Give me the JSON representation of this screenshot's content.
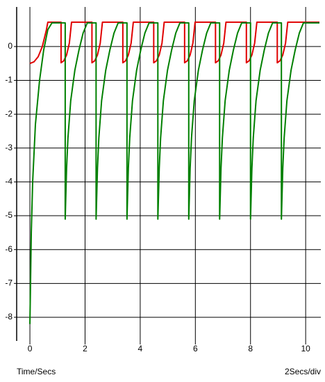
{
  "chart_data": {
    "type": "line",
    "x_label": "Time/Secs",
    "scale_label": "2Secs/div",
    "xlim": [
      -0.48,
      10.55
    ],
    "ylim": [
      -8.7,
      1.17
    ],
    "xticks": [
      0,
      2,
      4,
      6,
      8,
      10
    ],
    "yticks": [
      -8,
      -7,
      -6,
      -5,
      -4,
      -3,
      -2,
      -1,
      0
    ],
    "grid": true,
    "series": [
      {
        "color": "#e00000",
        "x": [
          0,
          0.15,
          0.3,
          0.45,
          0.6,
          0.65,
          1.13,
          1.13,
          1.23,
          1.33,
          1.43,
          1.51,
          2.25,
          2.25,
          2.35,
          2.45,
          2.55,
          2.63,
          3.37,
          3.37,
          3.47,
          3.57,
          3.67,
          3.75,
          4.49,
          4.49,
          4.59,
          4.69,
          4.79,
          4.87,
          5.61,
          5.61,
          5.71,
          5.81,
          5.91,
          5.99,
          6.73,
          6.73,
          6.83,
          6.93,
          7.03,
          7.11,
          7.85,
          7.85,
          7.95,
          8.05,
          8.15,
          8.23,
          8.97,
          8.97,
          9.07,
          9.17,
          9.27,
          9.35,
          10.5
        ],
        "values": [
          -0.5,
          -0.45,
          -0.3,
          0,
          0.5,
          0.72,
          0.72,
          -0.48,
          -0.42,
          -0.25,
          0.1,
          0.72,
          0.72,
          -0.48,
          -0.42,
          -0.25,
          0.1,
          0.72,
          0.72,
          -0.48,
          -0.42,
          -0.25,
          0.1,
          0.72,
          0.72,
          -0.48,
          -0.42,
          -0.25,
          0.1,
          0.72,
          0.72,
          -0.48,
          -0.42,
          -0.25,
          0.1,
          0.72,
          0.72,
          -0.48,
          -0.42,
          -0.25,
          0.1,
          0.72,
          0.72,
          -0.48,
          -0.42,
          -0.25,
          0.1,
          0.72,
          0.72,
          -0.48,
          -0.42,
          -0.25,
          0.1,
          0.72,
          0.72
        ]
      },
      {
        "color": "#008000",
        "x": [
          0,
          0.05,
          0.1,
          0.2,
          0.35,
          0.5,
          0.65,
          0.8,
          1.28,
          1.28,
          1.33,
          1.38,
          1.48,
          1.63,
          1.78,
          1.93,
          2.08,
          2.4,
          2.4,
          2.45,
          2.5,
          2.6,
          2.75,
          2.9,
          3.05,
          3.2,
          3.52,
          3.52,
          3.57,
          3.62,
          3.72,
          3.87,
          4.02,
          4.17,
          4.32,
          4.64,
          4.64,
          4.69,
          4.74,
          4.84,
          4.99,
          5.14,
          5.29,
          5.44,
          5.76,
          5.76,
          5.81,
          5.86,
          5.96,
          6.11,
          6.26,
          6.41,
          6.56,
          6.88,
          6.88,
          6.93,
          6.98,
          7.08,
          7.23,
          7.38,
          7.53,
          7.68,
          8.0,
          8.0,
          8.05,
          8.1,
          8.2,
          8.35,
          8.5,
          8.65,
          8.8,
          9.12,
          9.12,
          9.17,
          9.22,
          9.32,
          9.47,
          9.62,
          9.77,
          9.92,
          10.5
        ],
        "values": [
          -8.2,
          -5.5,
          -4,
          -2.3,
          -1,
          -0.1,
          0.5,
          0.7,
          0.7,
          -5.1,
          -3.6,
          -2.7,
          -1.6,
          -0.7,
          -0.1,
          0.4,
          0.7,
          0.7,
          -5.1,
          -3.6,
          -2.7,
          -1.6,
          -0.7,
          -0.1,
          0.4,
          0.7,
          0.7,
          -5.1,
          -3.6,
          -2.7,
          -1.6,
          -0.7,
          -0.1,
          0.4,
          0.7,
          0.7,
          -5.1,
          -3.6,
          -2.7,
          -1.6,
          -0.7,
          -0.1,
          0.4,
          0.7,
          0.7,
          -5.1,
          -3.6,
          -2.7,
          -1.6,
          -0.7,
          -0.1,
          0.4,
          0.7,
          0.7,
          -5.1,
          -3.6,
          -2.7,
          -1.6,
          -0.7,
          -0.1,
          0.4,
          0.7,
          0.7,
          -5.1,
          -3.6,
          -2.7,
          -1.6,
          -0.7,
          -0.1,
          0.4,
          0.7,
          0.7,
          -5.1,
          -3.6,
          -2.7,
          -1.6,
          -0.7,
          -0.1,
          0.4,
          0.7,
          0.7
        ]
      }
    ]
  }
}
